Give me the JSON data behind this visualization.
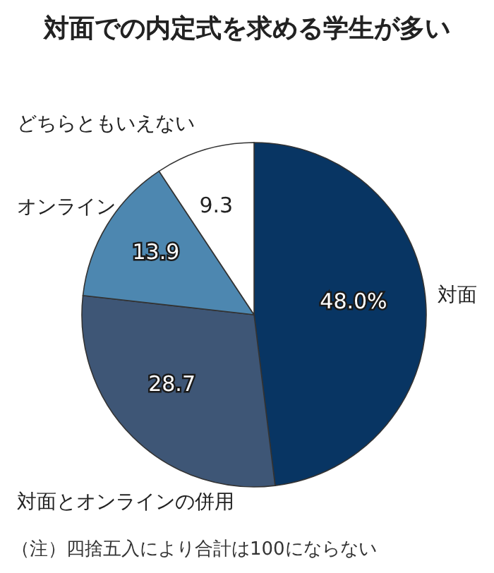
{
  "chart_data": {
    "type": "pie",
    "title": "対面での内定式を求める学生が多い",
    "categories": [
      "対面",
      "対面とオンラインの併用",
      "オンライン",
      "どちらともいえない"
    ],
    "values": [
      48.0,
      28.7,
      13.9,
      9.3
    ],
    "value_labels": [
      "48.0%",
      "28.7",
      "13.9",
      "9.3"
    ],
    "colors": [
      "#083563",
      "#3e5676",
      "#4d87b0",
      "#ffffff"
    ],
    "annotations": [
      "（注）四捨五入により合計は100にならない"
    ]
  }
}
